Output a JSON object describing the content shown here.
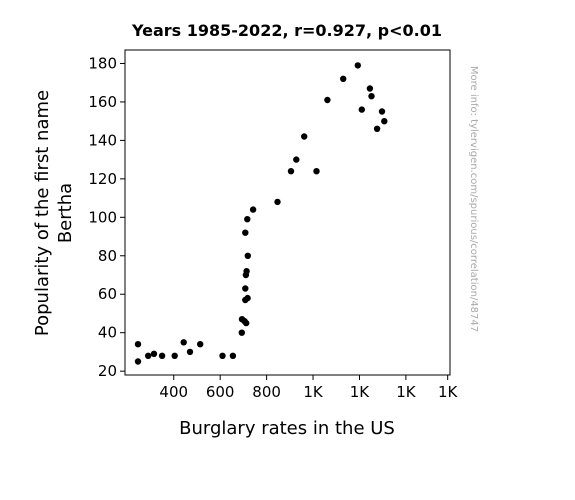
{
  "chart_data": {
    "type": "scatter",
    "title": "Years 1985-2022, r=0.927, p<0.01",
    "xlabel": "Burglary rates in the US",
    "ylabel_lines": [
      "Popularity of the first name",
      "Bertha"
    ],
    "side_note": "More info: tylervigen.com/spurious/correlation/48747",
    "xlim": [
      190,
      1590
    ],
    "ylim": [
      18,
      187
    ],
    "x_ticks": [
      {
        "value": 400,
        "label": "400"
      },
      {
        "value": 600,
        "label": "600"
      },
      {
        "value": 800,
        "label": "800"
      },
      {
        "value": 1000,
        "label": "1K"
      },
      {
        "value": 1200,
        "label": "1K"
      },
      {
        "value": 1400,
        "label": "1K"
      },
      {
        "value": 1580,
        "label": "1K"
      }
    ],
    "y_ticks": [
      20,
      40,
      60,
      80,
      100,
      120,
      140,
      160,
      180
    ],
    "grid": false,
    "point_color": "#000000",
    "points": [
      {
        "x": 246,
        "y": 25
      },
      {
        "x": 246,
        "y": 34
      },
      {
        "x": 290,
        "y": 28
      },
      {
        "x": 315,
        "y": 29
      },
      {
        "x": 350,
        "y": 28
      },
      {
        "x": 404,
        "y": 28
      },
      {
        "x": 443,
        "y": 35
      },
      {
        "x": 470,
        "y": 30
      },
      {
        "x": 514,
        "y": 34
      },
      {
        "x": 610,
        "y": 28
      },
      {
        "x": 655,
        "y": 28
      },
      {
        "x": 693,
        "y": 40
      },
      {
        "x": 694,
        "y": 47
      },
      {
        "x": 705,
        "y": 46
      },
      {
        "x": 712,
        "y": 45
      },
      {
        "x": 708,
        "y": 57
      },
      {
        "x": 718,
        "y": 58
      },
      {
        "x": 708,
        "y": 63
      },
      {
        "x": 711,
        "y": 70
      },
      {
        "x": 714,
        "y": 72
      },
      {
        "x": 719,
        "y": 80
      },
      {
        "x": 708,
        "y": 92
      },
      {
        "x": 717,
        "y": 99
      },
      {
        "x": 742,
        "y": 104
      },
      {
        "x": 847,
        "y": 108
      },
      {
        "x": 905,
        "y": 124
      },
      {
        "x": 928,
        "y": 130
      },
      {
        "x": 962,
        "y": 142
      },
      {
        "x": 1015,
        "y": 124
      },
      {
        "x": 1062,
        "y": 161
      },
      {
        "x": 1130,
        "y": 172
      },
      {
        "x": 1193,
        "y": 179
      },
      {
        "x": 1210,
        "y": 156
      },
      {
        "x": 1245,
        "y": 167
      },
      {
        "x": 1252,
        "y": 163
      },
      {
        "x": 1276,
        "y": 146
      },
      {
        "x": 1297,
        "y": 155
      },
      {
        "x": 1307,
        "y": 150
      }
    ]
  }
}
